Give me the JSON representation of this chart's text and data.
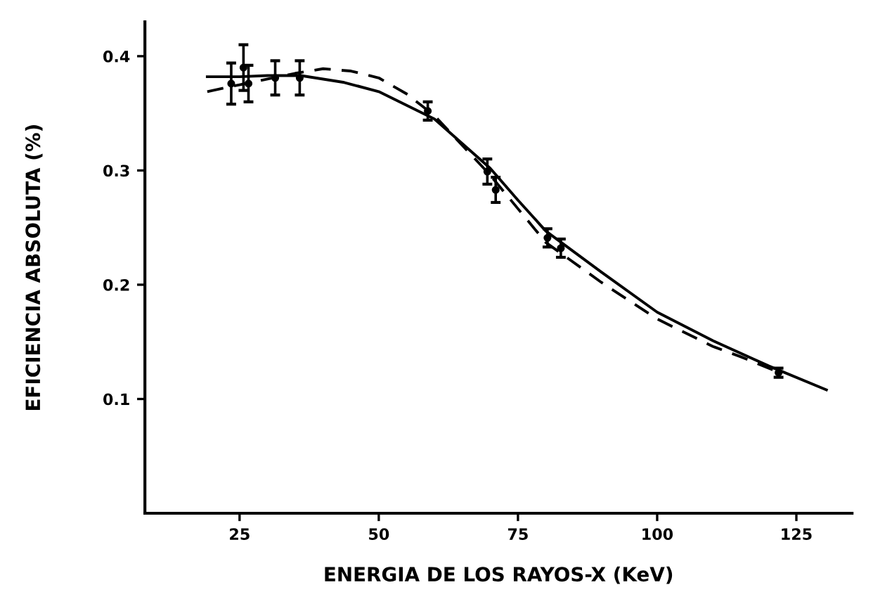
{
  "chart_data": {
    "type": "line",
    "xlabel": "ENERGIA DE LOS RAYOS-X (KeV)",
    "ylabel": "EFICIENCIA ABSOLUTA (%)",
    "xlim": [
      8,
      135
    ],
    "ylim": [
      0,
      0.43
    ],
    "xticks": [
      25,
      50,
      75,
      100,
      125
    ],
    "yticks": [
      0.1,
      0.2,
      0.3,
      0.4
    ],
    "grid": false,
    "legend": false,
    "series": [
      {
        "color": "#000000",
        "line_style": "solid",
        "x": [
          19.2,
          25,
          30,
          36,
          43.8,
          50,
          60,
          70,
          75,
          80,
          90,
          100,
          110,
          120,
          130.4
        ],
        "values": [
          0.382,
          0.382,
          0.383,
          0.383,
          0.377,
          0.369,
          0.345,
          0.302,
          0.274,
          0.247,
          0.211,
          0.176,
          0.151,
          0.129,
          0.108
        ]
      },
      {
        "color": "#000000",
        "line_style": "dashed",
        "x": [
          19.2,
          25,
          35,
          40,
          45,
          50,
          55,
          60,
          70,
          80,
          90,
          100,
          110,
          115,
          122
        ],
        "values": [
          0.369,
          0.375,
          0.385,
          0.389,
          0.387,
          0.381,
          0.367,
          0.348,
          0.296,
          0.237,
          0.202,
          0.17,
          0.146,
          0.137,
          0.123
        ]
      },
      {
        "type": "scatter",
        "color": "#000000",
        "marker": "circle",
        "x": [
          23.5,
          25.7,
          26.6,
          31.4,
          35.8,
          58.8,
          69.5,
          71,
          80.3,
          82.7,
          121.8
        ],
        "values": [
          0.376,
          0.39,
          0.376,
          0.381,
          0.381,
          0.352,
          0.299,
          0.283,
          0.241,
          0.232,
          0.123
        ],
        "errors": [
          0.018,
          0.02,
          0.016,
          0.015,
          0.015,
          0.008,
          0.011,
          0.011,
          0.008,
          0.008,
          0.004
        ]
      }
    ]
  }
}
